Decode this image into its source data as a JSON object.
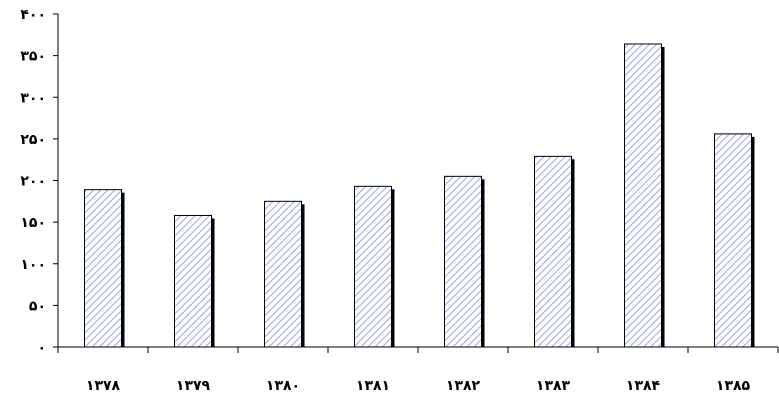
{
  "chart_data": {
    "type": "bar",
    "categories": [
      "۱۳۷۸",
      "۱۳۷۹",
      "۱۳۸۰",
      "۱۳۸۱",
      "۱۳۸۲",
      "۱۳۸۳",
      "۱۳۸۴",
      "۱۳۸۵"
    ],
    "values": [
      189,
      158,
      175,
      193,
      205,
      229,
      364,
      256
    ],
    "ylim": [
      0,
      400
    ],
    "yticks": [
      0,
      50,
      100,
      150,
      200,
      250,
      300,
      350,
      400
    ],
    "ytick_labels": [
      "۰",
      "۵۰",
      "۱۰۰",
      "۱۵۰",
      "۲۰۰",
      "۲۵۰",
      "۳۰۰",
      "۳۵۰",
      "۴۰۰"
    ],
    "title": "",
    "xlabel": "",
    "ylabel": "",
    "grid": false,
    "legend": "none",
    "colors": {
      "bar_fill": "#ffffff",
      "hatch": "#9aa4e6",
      "bar_edge": "#000000",
      "shadow": "#000000",
      "axis": "#000000"
    }
  }
}
